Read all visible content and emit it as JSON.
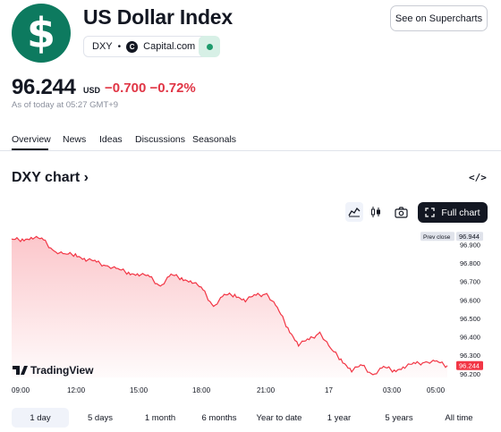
{
  "header": {
    "logo_glyph": "$",
    "title": "US Dollar Index",
    "symbol": "DXY",
    "separator": "•",
    "provider_icon_glyph": "C",
    "provider": "Capital.com",
    "supercharts_label": "See on Supercharts",
    "status_color": "#1d9b6c"
  },
  "quote": {
    "price": "96.244",
    "currency": "USD",
    "change": "−0.700",
    "change_pct": "−0.72%",
    "as_of": "As of today at 05:27 GMT+9",
    "change_color": "#e03545"
  },
  "tabs": [
    {
      "label": "Overview",
      "active": true
    },
    {
      "label": "News"
    },
    {
      "label": "Ideas"
    },
    {
      "label": "Discussions"
    },
    {
      "label": "Seasonals"
    }
  ],
  "chart_section": {
    "heading": "DXY chart",
    "heading_chevron": "›",
    "embed_icon": "</>",
    "toolbar": {
      "line_icon": "area-line-icon",
      "candle_icon": "candlestick-icon",
      "camera_icon": "camera-icon",
      "fullchart_label": "Full chart"
    },
    "watermark": "TradingView"
  },
  "chart_data": {
    "type": "area",
    "symbol": "DXY",
    "color": "#f23645",
    "x_ticks": [
      "09:00",
      "12:00",
      "15:00",
      "18:00",
      "21:00",
      "17",
      "03:00",
      "05:00"
    ],
    "y_ticks": [
      96.9,
      96.8,
      96.7,
      96.6,
      96.5,
      96.4,
      96.3,
      96.2
    ],
    "y_tick_labels": [
      "96.900",
      "96.800",
      "96.700",
      "96.600",
      "96.500",
      "96.400",
      "96.300",
      "96.200"
    ],
    "ylim": [
      96.18,
      96.96
    ],
    "prev_close": {
      "label": "Prev close",
      "value": 96.944,
      "value_label": "96.944"
    },
    "last": {
      "value": 96.244,
      "value_label": "96.244"
    },
    "x": [
      "09:00",
      "09:30",
      "10:00",
      "10:30",
      "11:00",
      "11:30",
      "12:00",
      "12:30",
      "13:00",
      "13:30",
      "14:00",
      "14:30",
      "15:00",
      "15:30",
      "16:00",
      "16:30",
      "17:00",
      "17:30",
      "18:00",
      "18:30",
      "19:00",
      "19:30",
      "20:00",
      "20:30",
      "21:00",
      "21:30",
      "22:00",
      "22:30",
      "23:00",
      "23:30",
      "00:00",
      "00:30",
      "01:00",
      "01:30",
      "02:00",
      "02:30",
      "03:00",
      "03:30",
      "04:00",
      "04:30",
      "05:00",
      "05:27"
    ],
    "values": [
      96.92,
      96.93,
      96.94,
      96.92,
      96.87,
      96.84,
      96.85,
      96.82,
      96.8,
      96.79,
      96.76,
      96.75,
      96.74,
      96.72,
      96.68,
      96.73,
      96.72,
      96.7,
      96.65,
      96.57,
      96.62,
      96.63,
      96.6,
      96.62,
      96.64,
      96.55,
      96.45,
      96.36,
      96.38,
      96.43,
      96.33,
      96.28,
      96.22,
      96.24,
      96.2,
      96.23,
      96.22,
      96.24,
      96.25,
      96.27,
      96.26,
      96.244
    ]
  },
  "ranges": [
    {
      "label": "1 day",
      "active": true
    },
    {
      "label": "5 days"
    },
    {
      "label": "1 month"
    },
    {
      "label": "6 months"
    },
    {
      "label": "Year to date"
    },
    {
      "label": "1 year"
    },
    {
      "label": "5 years"
    },
    {
      "label": "All time"
    }
  ]
}
